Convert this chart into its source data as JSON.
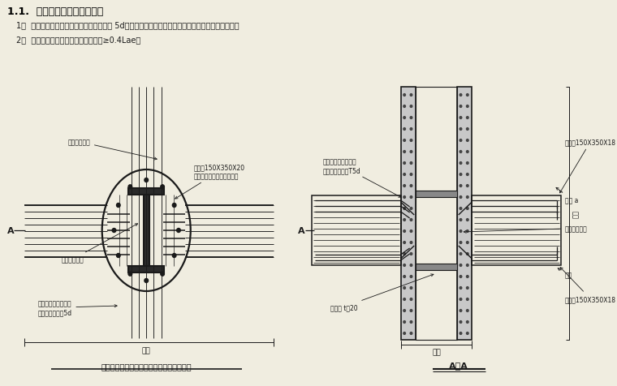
{
  "bg_color": "#f0ede0",
  "title_text": "1.1.  梁纵筋与型钢柱连接方法",
  "item1": "1）  梁纵筋焊于钢牛腿、加劲肋上，双面焊 5d；当有双排筋时，第二排筋焊于钢牛腿或加劲肋下侧；",
  "item2": "2）  梁纵筋弯锚，满足水平段锚固长度≥0.4Lae。",
  "caption_left": "非转换层型钢圆柱与钢筋混凝土梁节点详图",
  "caption_right": "A－A",
  "label_beam_width": "梁宽",
  "label_col_width": "柱宽",
  "label_col_height": "柱高",
  "ann_bolt": "栓钉截断孔位",
  "ann_haunch1": "钢牛腿150X350X20\n设置宽翼缘、坡脚加劲位置",
  "ann_web": "型钢钢柱腹板",
  "ann_weld_left": "双面焊接于钢牛腿上\n焊接长度不小于5d",
  "ann_haunch_r_top": "钢牛腿150X350X18",
  "ann_weld_right": "双面焊接于钢牛腿上\n焊接长度不小于T5d",
  "ann_bolt_r": "栓钉截断孔位",
  "ann_stiff": "加劲肋 t＝20",
  "ann_余割_a": "余割 a",
  "ann_余割": "余割",
  "ann_haunch_r_bot": "钢牛腿150X350X18",
  "text_color": "#1a1a1a",
  "line_color": "#1a1a1a",
  "title_color": "#000000"
}
